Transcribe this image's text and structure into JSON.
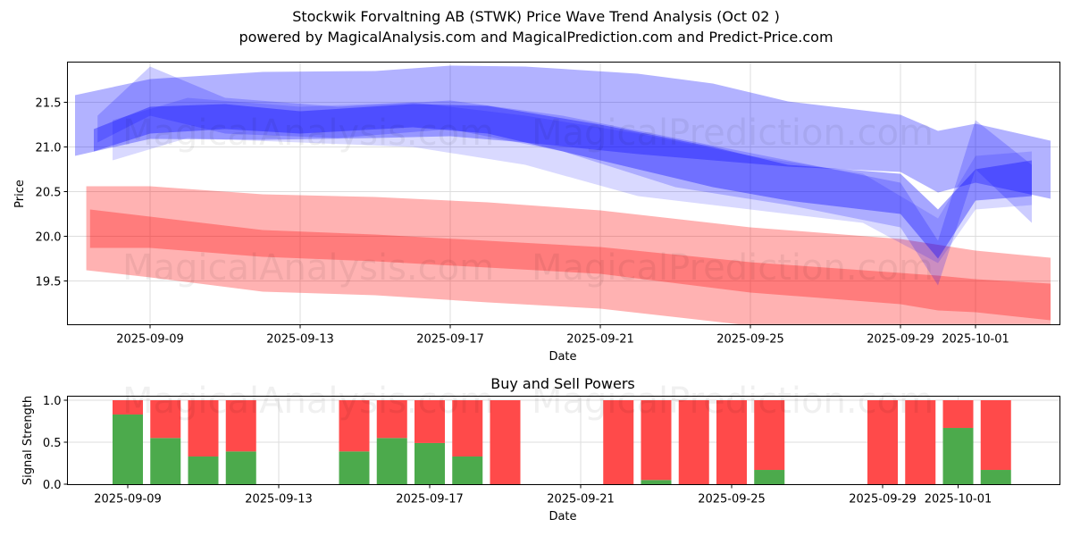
{
  "header": {
    "title": "Stockwik Forvaltning AB (STWK) Price Wave Trend Analysis (Oct 02 )",
    "subtitle": "powered by MagicalAnalysis.com and MagicalPrediction.com and Predict-Price.com"
  },
  "watermarks": [
    "MagicalAnalysis.com",
    "MagicalPrediction.com"
  ],
  "colors": {
    "blue_band": "#0000ff",
    "red_band": "#ff0000",
    "buy": "#4caa4c",
    "sell": "#ff4a4a",
    "grid": "#dddddd"
  },
  "chart_data": [
    {
      "type": "area",
      "title": "",
      "xlabel": "Date",
      "ylabel": "Price",
      "x_range": [
        "2025-09-06.8",
        "2025-10-03.2"
      ],
      "ylim": [
        19.01,
        21.95
      ],
      "grid": true,
      "x_ticks": [
        "2025-09-09",
        "2025-09-13",
        "2025-09-17",
        "2025-09-21",
        "2025-09-25",
        "2025-09-29",
        "2025-10-01"
      ],
      "y_ticks": [
        "19.5",
        "20.0",
        "20.5",
        "21.0",
        "21.5"
      ],
      "series": [
        {
          "name": "red-outer-band",
          "color": "red",
          "opacity": 0.3,
          "x": [
            "2025-09-07.3",
            "2025-09-09",
            "2025-09-12",
            "2025-09-15",
            "2025-09-18",
            "2025-09-21",
            "2025-09-25",
            "2025-09-29",
            "2025-10-01",
            "2025-10-03"
          ],
          "upper": [
            20.56,
            20.56,
            20.47,
            20.44,
            20.38,
            20.29,
            20.1,
            19.97,
            19.84,
            19.76
          ],
          "lower": [
            19.62,
            19.54,
            19.38,
            19.34,
            19.26,
            19.19,
            19.0,
            18.95,
            18.92,
            18.88
          ]
        },
        {
          "name": "red-inner-band",
          "color": "red",
          "opacity": 0.3,
          "x": [
            "2025-09-07.4",
            "2025-09-09",
            "2025-09-12",
            "2025-09-15",
            "2025-09-18",
            "2025-09-21",
            "2025-09-25",
            "2025-09-29",
            "2025-09-30",
            "2025-10-01",
            "2025-10-03"
          ],
          "upper": [
            20.3,
            20.22,
            20.07,
            20.02,
            19.95,
            19.88,
            19.71,
            19.59,
            19.56,
            19.52,
            19.47
          ],
          "lower": [
            19.87,
            19.87,
            19.77,
            19.72,
            19.65,
            19.58,
            19.37,
            19.24,
            19.17,
            19.15,
            19.06
          ]
        },
        {
          "name": "blue-outer-band",
          "color": "blue",
          "opacity": 0.3,
          "x": [
            "2025-09-07",
            "2025-09-09",
            "2025-09-12",
            "2025-09-15",
            "2025-09-17",
            "2025-09-19",
            "2025-09-22",
            "2025-09-24",
            "2025-09-26",
            "2025-09-29",
            "2025-09-30",
            "2025-10-01",
            "2025-10-03"
          ],
          "upper": [
            21.58,
            21.76,
            21.84,
            21.85,
            21.91,
            21.9,
            21.82,
            21.71,
            21.51,
            21.36,
            21.18,
            21.26,
            21.07
          ],
          "lower": [
            20.9,
            21.09,
            21.08,
            21.1,
            21.12,
            21.05,
            20.92,
            20.85,
            20.78,
            20.72,
            20.49,
            20.6,
            20.42
          ]
        },
        {
          "name": "blue-core-band",
          "color": "blue",
          "opacity": 0.35,
          "x": [
            "2025-09-07.5",
            "2025-09-09",
            "2025-09-11",
            "2025-09-13",
            "2025-09-16",
            "2025-09-18",
            "2025-09-21",
            "2025-09-24",
            "2025-09-26",
            "2025-09-29",
            "2025-09-30",
            "2025-10-01",
            "2025-10-02.5"
          ],
          "upper": [
            21.2,
            21.45,
            21.48,
            21.4,
            21.48,
            21.46,
            21.25,
            21.0,
            20.8,
            20.7,
            20.3,
            20.75,
            20.85
          ],
          "lower": [
            20.95,
            21.15,
            21.2,
            21.15,
            21.22,
            21.15,
            20.85,
            20.55,
            20.4,
            20.25,
            19.75,
            20.4,
            20.45
          ]
        },
        {
          "name": "blue-wave-band",
          "color": "blue",
          "opacity": 0.2,
          "x": [
            "2025-09-07.6",
            "2025-09-09",
            "2025-09-11",
            "2025-09-14",
            "2025-09-17",
            "2025-09-20",
            "2025-09-23",
            "2025-09-26",
            "2025-09-29",
            "2025-09-30",
            "2025-10-01",
            "2025-10-02.5"
          ],
          "upper": [
            21.35,
            21.9,
            21.55,
            21.45,
            21.52,
            21.35,
            21.1,
            20.85,
            20.6,
            19.95,
            21.3,
            20.8
          ],
          "lower": [
            21.05,
            21.35,
            21.15,
            21.1,
            21.2,
            20.95,
            20.55,
            20.35,
            20.1,
            19.45,
            20.75,
            20.15
          ]
        },
        {
          "name": "blue-spread-band",
          "color": "blue",
          "opacity": 0.15,
          "x": [
            "2025-09-08",
            "2025-09-10",
            "2025-09-13",
            "2025-09-16",
            "2025-09-19",
            "2025-09-22",
            "2025-09-25",
            "2025-09-28",
            "2025-09-30",
            "2025-10-01",
            "2025-10-02.5"
          ],
          "upper": [
            21.3,
            21.55,
            21.45,
            21.5,
            21.35,
            21.15,
            20.9,
            20.7,
            20.2,
            20.9,
            20.95
          ],
          "lower": [
            20.85,
            21.1,
            21.05,
            21.0,
            20.8,
            20.45,
            20.3,
            20.15,
            19.7,
            20.3,
            20.35
          ]
        }
      ]
    },
    {
      "type": "bar",
      "title": "Buy and Sell Powers",
      "xlabel": "Date",
      "ylabel": "Signal Strength",
      "ylim": [
        0,
        1.05
      ],
      "grid": true,
      "x_ticks": [
        "2025-09-09",
        "2025-09-13",
        "2025-09-17",
        "2025-09-21",
        "2025-09-25",
        "2025-09-29",
        "2025-10-01"
      ],
      "y_ticks": [
        "0.0",
        "0.5",
        "1.0"
      ],
      "categories": [
        "2025-09-09",
        "2025-09-10",
        "2025-09-11",
        "2025-09-12",
        "2025-09-15",
        "2025-09-16",
        "2025-09-17",
        "2025-09-18",
        "2025-09-19",
        "2025-09-22",
        "2025-09-23",
        "2025-09-24",
        "2025-09-25",
        "2025-09-26",
        "2025-09-29",
        "2025-09-30",
        "2025-10-01",
        "2025-10-02"
      ],
      "series": [
        {
          "name": "Buy",
          "color": "green",
          "values": [
            0.83,
            0.55,
            0.33,
            0.39,
            0.39,
            0.55,
            0.49,
            0.33,
            0.0,
            0.0,
            0.05,
            0.0,
            0.0,
            0.17,
            0.0,
            0.0,
            0.67,
            0.17
          ]
        },
        {
          "name": "Sell",
          "color": "red",
          "values": [
            0.17,
            0.45,
            0.67,
            0.61,
            0.61,
            0.45,
            0.51,
            0.67,
            1.0,
            1.0,
            0.95,
            1.0,
            1.0,
            0.83,
            1.0,
            1.0,
            0.33,
            0.83
          ]
        }
      ]
    }
  ]
}
